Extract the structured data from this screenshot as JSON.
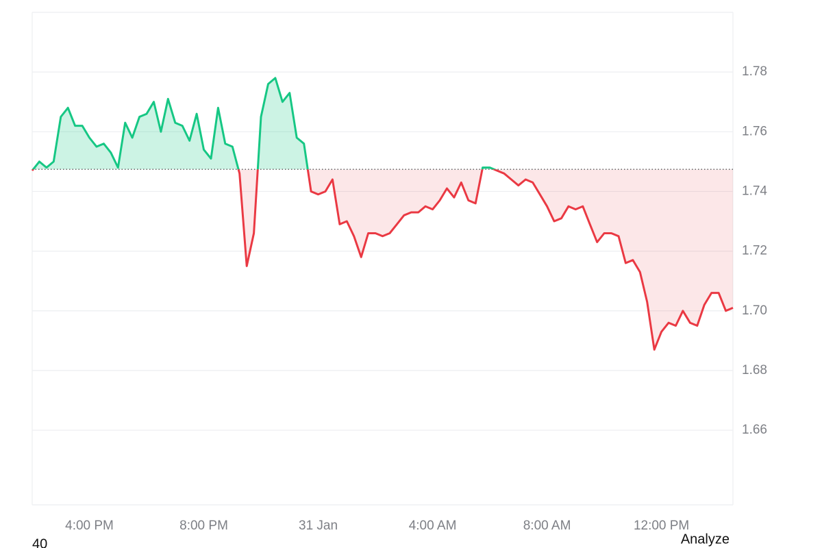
{
  "chart_data": {
    "type": "line",
    "x": [
      14,
      14.25,
      14.5,
      14.75,
      15,
      15.25,
      15.5,
      15.75,
      16,
      16.25,
      16.5,
      16.75,
      17,
      17.25,
      17.5,
      17.75,
      18,
      18.25,
      18.5,
      18.75,
      19,
      19.25,
      19.5,
      19.75,
      20,
      20.25,
      20.5,
      20.75,
      21,
      21.25,
      21.5,
      21.75,
      22,
      22.25,
      22.5,
      22.75,
      23,
      23.25,
      23.5,
      23.75,
      24,
      24.25,
      24.5,
      24.75,
      25,
      25.25,
      25.5,
      25.75,
      26,
      26.25,
      26.5,
      26.75,
      27,
      27.25,
      27.5,
      27.75,
      28,
      28.25,
      28.5,
      28.75,
      29,
      29.25,
      29.5,
      29.75,
      30,
      30.25,
      30.5,
      30.75,
      31,
      31.25,
      31.5,
      31.75,
      32,
      32.25,
      32.5,
      32.75,
      33,
      33.25,
      33.5,
      33.75,
      34,
      34.25,
      34.5,
      34.75,
      35,
      35.25,
      35.5,
      35.75,
      36,
      36.25,
      36.5,
      36.75,
      37,
      37.25,
      37.5,
      37.75,
      38,
      38.25,
      38.5
    ],
    "series": [
      {
        "color_up": "#16c784",
        "color_down": "#ea3943",
        "values": [
          1.747,
          1.75,
          1.748,
          1.75,
          1.765,
          1.768,
          1.762,
          1.762,
          1.758,
          1.755,
          1.756,
          1.753,
          1.748,
          1.763,
          1.758,
          1.765,
          1.766,
          1.77,
          1.76,
          1.771,
          1.763,
          1.762,
          1.757,
          1.766,
          1.754,
          1.751,
          1.768,
          1.756,
          1.755,
          1.746,
          1.715,
          1.726,
          1.765,
          1.776,
          1.778,
          1.77,
          1.773,
          1.758,
          1.756,
          1.74,
          1.739,
          1.74,
          1.744,
          1.729,
          1.73,
          1.725,
          1.718,
          1.726,
          1.726,
          1.725,
          1.726,
          1.729,
          1.732,
          1.733,
          1.733,
          1.735,
          1.734,
          1.737,
          1.741,
          1.738,
          1.743,
          1.737,
          1.736,
          1.748,
          1.748,
          1.747,
          1.746,
          1.744,
          1.742,
          1.744,
          1.743,
          1.739,
          1.735,
          1.73,
          1.731,
          1.735,
          1.734,
          1.735,
          1.729,
          1.723,
          1.726,
          1.726,
          1.725,
          1.716,
          1.717,
          1.713,
          1.703,
          1.687,
          1.693,
          1.696,
          1.695,
          1.7,
          1.696,
          1.695,
          1.702,
          1.706,
          1.706,
          1.7,
          1.701
        ]
      }
    ],
    "baseline": 1.7474,
    "xlim": [
      14,
      38.5
    ],
    "xticks": [
      {
        "value": 16,
        "label": "4:00 PM"
      },
      {
        "value": 20,
        "label": "8:00 PM"
      },
      {
        "value": 24,
        "label": "31 Jan"
      },
      {
        "value": 28,
        "label": "4:00 AM"
      },
      {
        "value": 32,
        "label": "8:00 AM"
      },
      {
        "value": 36,
        "label": "12:00 PM"
      }
    ],
    "ylim": [
      1.635,
      1.8
    ],
    "yticks": [
      1.66,
      1.68,
      1.7,
      1.72,
      1.74,
      1.76,
      1.78
    ],
    "grid": true,
    "annotations": [
      "40",
      "Analyze"
    ]
  }
}
